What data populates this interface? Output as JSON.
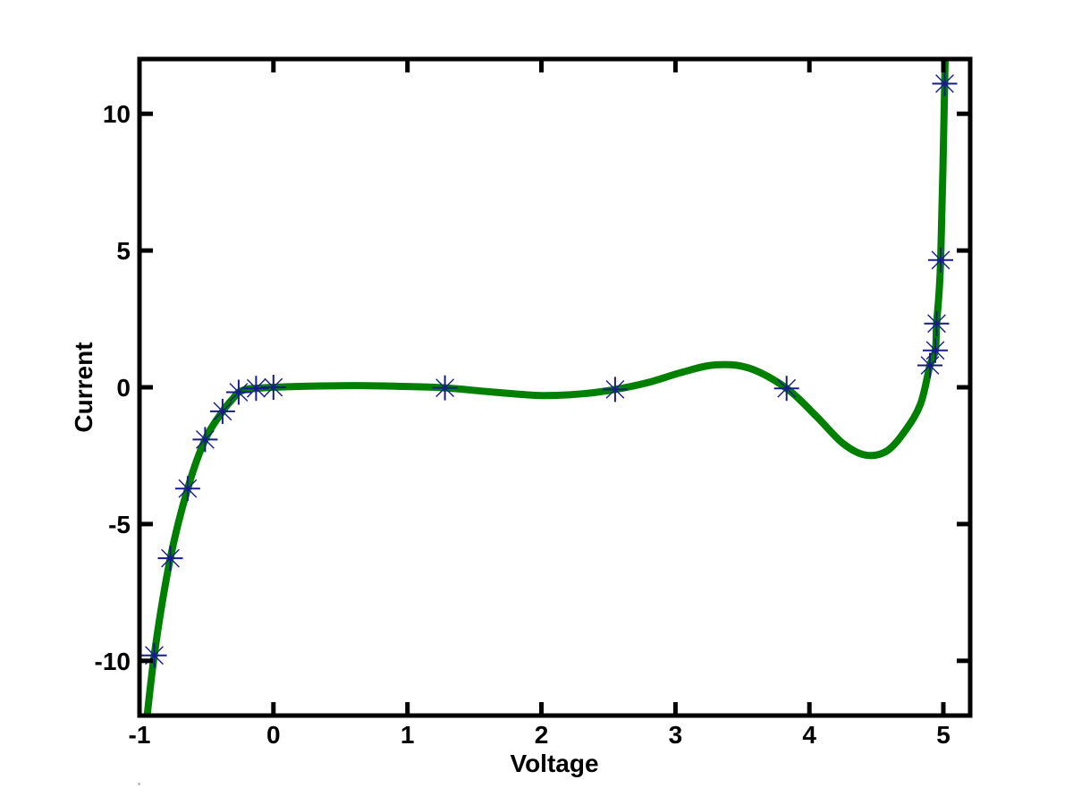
{
  "figure": {
    "background": "#ffffff",
    "axis_color": "#000000",
    "tick_label_color": "#000000"
  },
  "chart_data": {
    "type": "line",
    "title": "",
    "xlabel": "Voltage",
    "ylabel": "Current",
    "xlim": [
      -1,
      5.2
    ],
    "ylim": [
      -12,
      12
    ],
    "xticks": [
      -1,
      0,
      1,
      2,
      3,
      4,
      5
    ],
    "yticks": [
      -10,
      -5,
      0,
      5,
      10
    ],
    "grid": false,
    "legend": false,
    "box": true,
    "ticks_mirrored": true,
    "series": [
      {
        "name": "fitted-curve",
        "type": "line",
        "color": "#008000",
        "line_width": 8,
        "points": [
          [
            -0.975,
            -13.5
          ],
          [
            -0.89,
            -9.8
          ],
          [
            -0.77,
            -6.25
          ],
          [
            -0.64,
            -3.7
          ],
          [
            -0.51,
            -1.91
          ],
          [
            -0.38,
            -0.88
          ],
          [
            -0.3,
            -0.4
          ],
          [
            -0.26,
            -0.18
          ],
          [
            -0.19,
            -0.06
          ],
          [
            -0.13,
            -0.04
          ],
          [
            0.0,
            0.0
          ],
          [
            0.35,
            0.05
          ],
          [
            0.7,
            0.06
          ],
          [
            1.0,
            0.03
          ],
          [
            1.28,
            -0.02
          ],
          [
            1.65,
            -0.18
          ],
          [
            2.0,
            -0.3
          ],
          [
            2.3,
            -0.24
          ],
          [
            2.55,
            -0.08
          ],
          [
            2.8,
            0.18
          ],
          [
            3.05,
            0.55
          ],
          [
            3.3,
            0.82
          ],
          [
            3.55,
            0.7
          ],
          [
            3.83,
            -0.04
          ],
          [
            4.05,
            -1.05
          ],
          [
            4.25,
            -2.05
          ],
          [
            4.42,
            -2.48
          ],
          [
            4.58,
            -2.32
          ],
          [
            4.72,
            -1.55
          ],
          [
            4.83,
            -0.6
          ],
          [
            4.9,
            0.8
          ],
          [
            4.94,
            1.35
          ],
          [
            4.95,
            2.33
          ],
          [
            4.98,
            4.65
          ],
          [
            5.01,
            11.1
          ],
          [
            5.02,
            14.0
          ]
        ]
      },
      {
        "name": "data-points",
        "type": "scatter",
        "marker": "asterisk",
        "color": "#1a1a8f",
        "points": [
          [
            -0.89,
            -9.8
          ],
          [
            -0.77,
            -6.25
          ],
          [
            -0.64,
            -3.7
          ],
          [
            -0.51,
            -1.91
          ],
          [
            -0.38,
            -0.88
          ],
          [
            -0.26,
            -0.18
          ],
          [
            -0.13,
            -0.04
          ],
          [
            0.0,
            0.0
          ],
          [
            1.28,
            -0.02
          ],
          [
            2.55,
            -0.08
          ],
          [
            3.83,
            -0.04
          ],
          [
            4.9,
            0.8
          ],
          [
            4.94,
            1.35
          ],
          [
            4.95,
            2.33
          ],
          [
            4.98,
            4.65
          ],
          [
            5.01,
            11.1
          ]
        ]
      }
    ]
  }
}
